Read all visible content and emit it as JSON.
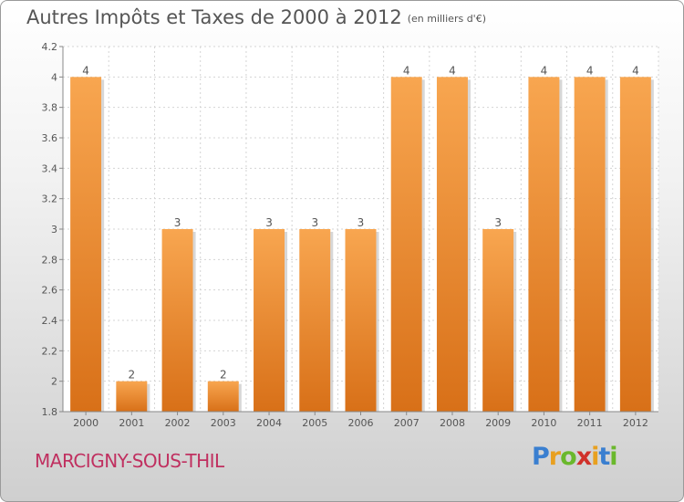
{
  "chart_data": {
    "type": "bar",
    "title": "Autres Impôts et Taxes de 2000 à 2012",
    "subtitle": "(en milliers d'€)",
    "categories": [
      "2000",
      "2001",
      "2002",
      "2003",
      "2004",
      "2005",
      "2006",
      "2007",
      "2008",
      "2009",
      "2010",
      "2011",
      "2012"
    ],
    "values": [
      4,
      2,
      3,
      2,
      3,
      3,
      3,
      4,
      4,
      3,
      4,
      4,
      4
    ],
    "value_labels": [
      "4",
      "2",
      "3",
      "2",
      "3",
      "3",
      "3",
      "4",
      "4",
      "3",
      "4",
      "4",
      "4"
    ],
    "ylim": [
      1.8,
      4.2
    ],
    "yticks": [
      1.8,
      2,
      2.2,
      2.4,
      2.6,
      2.8,
      3,
      3.2,
      3.4,
      3.6,
      3.8,
      4,
      4.2
    ],
    "ytick_labels": [
      "1.8",
      "2",
      "2.2",
      "2.4",
      "2.6",
      "2.8",
      "3",
      "3.2",
      "3.4",
      "3.6",
      "3.8",
      "4",
      "4.2"
    ],
    "grid": true,
    "bar_color": "#f0963a",
    "xlabel": "",
    "ylabel": ""
  },
  "footer": {
    "commune": "MARCIGNY-SOUS-THIL"
  },
  "logo": {
    "letters": [
      "P",
      "r",
      "o",
      "x",
      "i",
      "t",
      "i"
    ],
    "colors": [
      "#3a7fd0",
      "#e8a020",
      "#6ab82c",
      "#d0302a",
      "#e8a020",
      "#3a7fd0",
      "#6ab82c"
    ]
  }
}
